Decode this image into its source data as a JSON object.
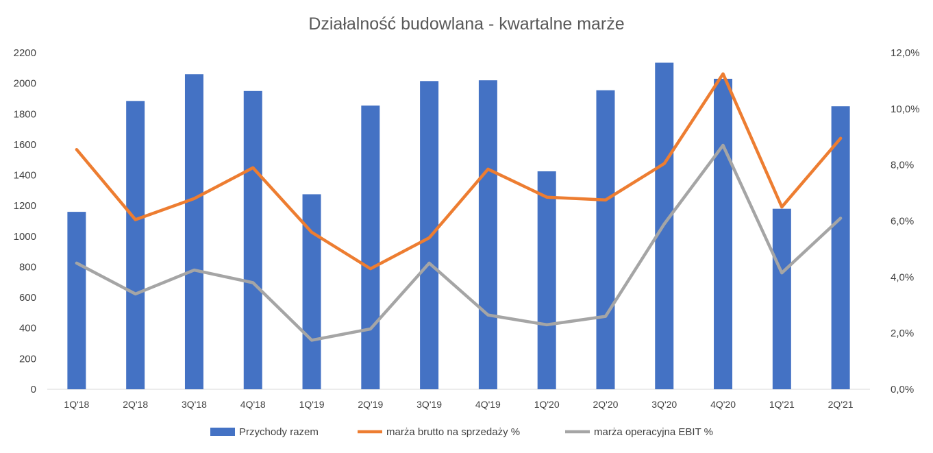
{
  "chart_data": {
    "type": "bar",
    "title": "Działalność budowlana - kwartalne marże",
    "categories": [
      "1Q'18",
      "2Q'18",
      "3Q'18",
      "4Q'18",
      "1Q'19",
      "2Q'19",
      "3Q'19",
      "4Q'19",
      "1Q'20",
      "2Q'20",
      "3Q'20",
      "4Q'20",
      "1Q'21",
      "2Q'21"
    ],
    "y_left": {
      "min": 0,
      "max": 2200,
      "step": 200,
      "ticks": [
        "0",
        "200",
        "400",
        "600",
        "800",
        "1000",
        "1200",
        "1400",
        "1600",
        "1800",
        "2000",
        "2200"
      ]
    },
    "y_right": {
      "min": 0,
      "max": 12,
      "step": 2,
      "ticks": [
        "0,0%",
        "2,0%",
        "4,0%",
        "6,0%",
        "8,0%",
        "10,0%",
        "12,0%"
      ]
    },
    "grid": false,
    "legend_position": "bottom",
    "series": [
      {
        "name": "Przychody razem",
        "type": "bar",
        "axis": "left",
        "color": "#4472C4",
        "values": [
          1160,
          1885,
          2060,
          1950,
          1275,
          1855,
          2015,
          2020,
          1425,
          1955,
          2135,
          2030,
          1180,
          1850
        ]
      },
      {
        "name": "marża brutto na sprzedaży %",
        "type": "line",
        "axis": "right",
        "color": "#ED7D31",
        "values": [
          8.55,
          6.05,
          6.8,
          7.9,
          5.6,
          4.3,
          5.4,
          7.85,
          6.85,
          6.75,
          8.05,
          11.25,
          6.5,
          8.95
        ]
      },
      {
        "name": "marża operacyjna EBIT %",
        "type": "line",
        "axis": "right",
        "color": "#A5A5A5",
        "values": [
          4.5,
          3.4,
          4.25,
          3.8,
          1.75,
          2.15,
          4.5,
          2.65,
          2.3,
          2.6,
          5.9,
          8.7,
          4.15,
          6.1
        ]
      }
    ]
  }
}
